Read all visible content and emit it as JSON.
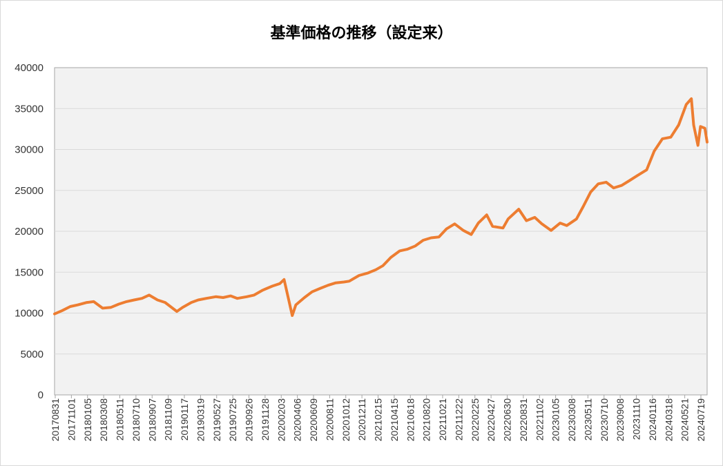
{
  "chart_data": {
    "type": "line",
    "title": "基準価格の推移（設定来）",
    "xlabel": "",
    "ylabel": "",
    "ylim": [
      0,
      40000
    ],
    "yticks": [
      0,
      5000,
      10000,
      15000,
      20000,
      25000,
      30000,
      35000,
      40000
    ],
    "grid": true,
    "legend": "none",
    "x_tick_labels": [
      "20170831",
      "20171101",
      "20180105",
      "20180308",
      "20180511",
      "20180710",
      "20180907",
      "20181109",
      "20190117",
      "20190319",
      "20190527",
      "20190725",
      "20190926",
      "20191128",
      "20200203",
      "20200406",
      "20200609",
      "20200811",
      "20201012",
      "20201211",
      "20210215",
      "20210415",
      "20210618",
      "20210820",
      "20211021",
      "20211222",
      "20220225",
      "20220427",
      "20220630",
      "20220831",
      "20221102",
      "20230105",
      "20230308",
      "20230511",
      "20230710",
      "20230908",
      "20231110",
      "20240116",
      "20240318",
      "20240521",
      "20240719"
    ],
    "series": [
      {
        "color": "#ed7d31",
        "x": [
          "20170831",
          "20170930",
          "20171101",
          "20171201",
          "20180105",
          "20180201",
          "20180308",
          "20180410",
          "20180511",
          "20180610",
          "20180710",
          "20180810",
          "20180907",
          "20181010",
          "20181109",
          "20181225",
          "20190117",
          "20190220",
          "20190319",
          "20190420",
          "20190527",
          "20190625",
          "20190725",
          "20190820",
          "20190926",
          "20191025",
          "20191128",
          "20200105",
          "20200203",
          "20200220",
          "20200310",
          "20200323",
          "20200406",
          "20200510",
          "20200609",
          "20200710",
          "20200811",
          "20200910",
          "20201012",
          "20201102",
          "20201211",
          "20210115",
          "20210215",
          "20210315",
          "20210415",
          "20210520",
          "20210618",
          "20210720",
          "20210820",
          "20210920",
          "20211021",
          "20211120",
          "20211222",
          "20220125",
          "20220225",
          "20220325",
          "20220427",
          "20220520",
          "20220630",
          "20220720",
          "20220831",
          "20220930",
          "20221102",
          "20221130",
          "20230105",
          "20230210",
          "20230308",
          "20230415",
          "20230511",
          "20230610",
          "20230710",
          "20230810",
          "20230908",
          "20231010",
          "20231110",
          "20231210",
          "20240116",
          "20240215",
          "20240318",
          "20240420",
          "20240521",
          "20240620",
          "20240710",
          "20240719",
          "20240805",
          "20240815",
          "20240901",
          "20240910"
        ],
        "values": [
          9900,
          10300,
          10800,
          11000,
          11300,
          11400,
          10600,
          10700,
          11100,
          11400,
          11600,
          11800,
          12200,
          11600,
          11300,
          10200,
          10700,
          11300,
          11600,
          11800,
          12000,
          11900,
          12100,
          11800,
          12000,
          12200,
          12800,
          13300,
          13600,
          14100,
          11500,
          9700,
          11000,
          11900,
          12600,
          13000,
          13400,
          13700,
          13800,
          13900,
          14600,
          14900,
          15300,
          15800,
          16800,
          17600,
          17800,
          18200,
          18900,
          19200,
          19300,
          20300,
          20900,
          20100,
          19600,
          21000,
          22000,
          20600,
          20400,
          21500,
          22700,
          21300,
          21700,
          20900,
          20100,
          21000,
          20700,
          21500,
          23000,
          24800,
          25800,
          26000,
          25300,
          25600,
          26200,
          26800,
          27500,
          29800,
          31300,
          31500,
          33000,
          35500,
          36200,
          33000,
          30500,
          32800,
          32600,
          30900
        ]
      }
    ]
  }
}
